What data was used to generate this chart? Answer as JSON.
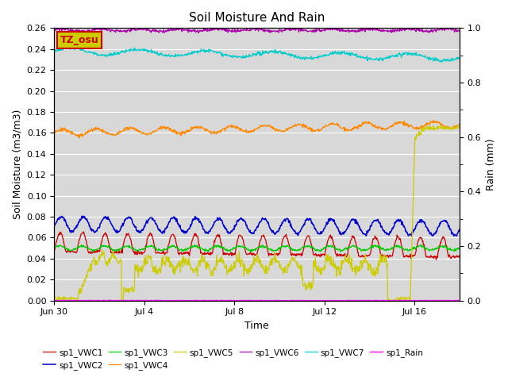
{
  "title": "Soil Moisture And Rain",
  "xlabel": "Time",
  "ylabel_left": "Soil Moisture (m3/m3)",
  "ylabel_right": "Rain (mm)",
  "ylim_left": [
    0.0,
    0.26
  ],
  "ylim_right": [
    0.0,
    1.0
  ],
  "bg_color": "#d8d8d8",
  "x_ticks_labels": [
    "Jun 30",
    "Jul 4",
    "Jul 8",
    "Jul 12",
    "Jul 16"
  ],
  "x_ticks_pos": [
    0,
    4,
    8,
    12,
    16
  ],
  "colors": {
    "vwc1": "#cc0000",
    "vwc2": "#0000cc",
    "vwc3": "#00cc00",
    "vwc4": "#ff8800",
    "vwc5": "#cccc00",
    "vwc6": "#aa00aa",
    "vwc7": "#00cccc",
    "rain": "#ff00ff"
  },
  "tz_label": "TZ_osu",
  "tz_bg": "#cccc00",
  "tz_fg": "#cc0000",
  "n_days": 18,
  "pts_per_day": 48
}
